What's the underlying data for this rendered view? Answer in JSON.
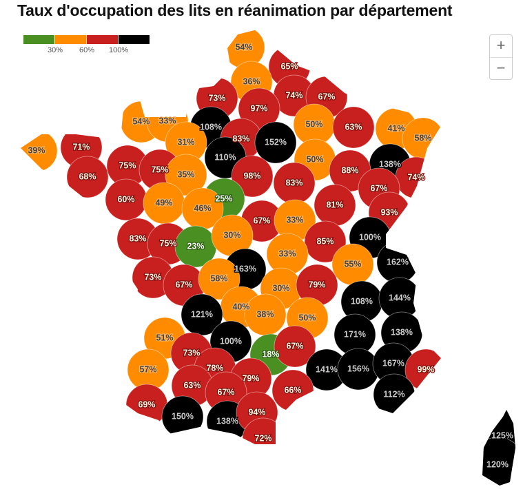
{
  "title": "Taux d'occupation des lits en réanimation par département",
  "legend": {
    "colors": {
      "green": "#4a8f22",
      "orange": "#ff8c00",
      "red": "#c8201f",
      "black": "#000000"
    },
    "thresholds": [
      "30%",
      "60%",
      "100%"
    ]
  },
  "zoom": {
    "in": "+",
    "out": "−"
  },
  "departments": [
    {
      "label": "54%",
      "c": "orange"
    },
    {
      "label": "65%",
      "c": "red"
    },
    {
      "label": "36%",
      "c": "orange"
    },
    {
      "label": "73%",
      "c": "red"
    },
    {
      "label": "74%",
      "c": "red"
    },
    {
      "label": "67%",
      "c": "red"
    },
    {
      "label": "97%",
      "c": "red"
    },
    {
      "label": "54%",
      "c": "orange"
    },
    {
      "label": "33%",
      "c": "orange"
    },
    {
      "label": "108%",
      "c": "black"
    },
    {
      "label": "50%",
      "c": "orange"
    },
    {
      "label": "63%",
      "c": "red"
    },
    {
      "label": "41%",
      "c": "orange"
    },
    {
      "label": "58%",
      "c": "orange"
    },
    {
      "label": "39%",
      "c": "orange"
    },
    {
      "label": "71%",
      "c": "red"
    },
    {
      "label": "31%",
      "c": "orange"
    },
    {
      "label": "83%",
      "c": "red"
    },
    {
      "label": "152%",
      "c": "black"
    },
    {
      "label": "110%",
      "c": "black"
    },
    {
      "label": "75%",
      "c": "red"
    },
    {
      "label": "75%",
      "c": "red"
    },
    {
      "label": "50%",
      "c": "orange"
    },
    {
      "label": "138%",
      "c": "black"
    },
    {
      "label": "88%",
      "c": "red"
    },
    {
      "label": "74%",
      "c": "red"
    },
    {
      "label": "68%",
      "c": "red"
    },
    {
      "label": "35%",
      "c": "orange"
    },
    {
      "label": "98%",
      "c": "red"
    },
    {
      "label": "83%",
      "c": "red"
    },
    {
      "label": "67%",
      "c": "red"
    },
    {
      "label": "25%",
      "c": "green"
    },
    {
      "label": "60%",
      "c": "red"
    },
    {
      "label": "49%",
      "c": "orange"
    },
    {
      "label": "46%",
      "c": "orange"
    },
    {
      "label": "81%",
      "c": "red"
    },
    {
      "label": "93%",
      "c": "red"
    },
    {
      "label": "67%",
      "c": "red"
    },
    {
      "label": "33%",
      "c": "orange"
    },
    {
      "label": "100%",
      "c": "black"
    },
    {
      "label": "83%",
      "c": "red"
    },
    {
      "label": "75%",
      "c": "red"
    },
    {
      "label": "23%",
      "c": "green"
    },
    {
      "label": "30%",
      "c": "orange"
    },
    {
      "label": "85%",
      "c": "red"
    },
    {
      "label": "33%",
      "c": "orange"
    },
    {
      "label": "55%",
      "c": "orange"
    },
    {
      "label": "162%",
      "c": "black"
    },
    {
      "label": "163%",
      "c": "black"
    },
    {
      "label": "73%",
      "c": "red"
    },
    {
      "label": "67%",
      "c": "red"
    },
    {
      "label": "58%",
      "c": "orange"
    },
    {
      "label": "30%",
      "c": "orange"
    },
    {
      "label": "79%",
      "c": "red"
    },
    {
      "label": "108%",
      "c": "black"
    },
    {
      "label": "144%",
      "c": "black"
    },
    {
      "label": "40%",
      "c": "orange"
    },
    {
      "label": "121%",
      "c": "black"
    },
    {
      "label": "38%",
      "c": "orange"
    },
    {
      "label": "50%",
      "c": "orange"
    },
    {
      "label": "171%",
      "c": "black"
    },
    {
      "label": "138%",
      "c": "black"
    },
    {
      "label": "51%",
      "c": "orange"
    },
    {
      "label": "100%",
      "c": "black"
    },
    {
      "label": "18%",
      "c": "green"
    },
    {
      "label": "67%",
      "c": "red"
    },
    {
      "label": "73%",
      "c": "red"
    },
    {
      "label": "57%",
      "c": "orange"
    },
    {
      "label": "78%",
      "c": "red"
    },
    {
      "label": "141%",
      "c": "black"
    },
    {
      "label": "156%",
      "c": "black"
    },
    {
      "label": "167%",
      "c": "black"
    },
    {
      "label": "99%",
      "c": "red"
    },
    {
      "label": "63%",
      "c": "red"
    },
    {
      "label": "79%",
      "c": "red"
    },
    {
      "label": "66%",
      "c": "red"
    },
    {
      "label": "67%",
      "c": "red"
    },
    {
      "label": "112%",
      "c": "black"
    },
    {
      "label": "69%",
      "c": "red"
    },
    {
      "label": "150%",
      "c": "black"
    },
    {
      "label": "138%",
      "c": "black"
    },
    {
      "label": "94%",
      "c": "red"
    },
    {
      "label": "72%",
      "c": "red"
    },
    {
      "label": "125%",
      "c": "black"
    },
    {
      "label": "120%",
      "c": "black"
    }
  ]
}
